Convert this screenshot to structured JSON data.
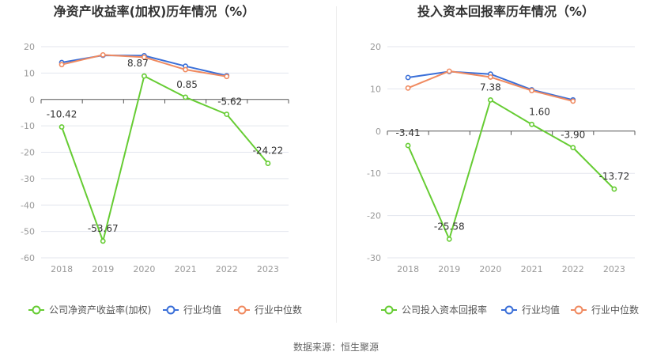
{
  "source_note": "数据来源：恒生聚源",
  "colors": {
    "company": "#66cc33",
    "industry_avg": "#3a6fd8",
    "industry_median": "#f08a60",
    "grid": "#e3e6ee",
    "axis": "#555555",
    "tick_text": "#999999",
    "title_text": "#333333"
  },
  "chart_data": [
    {
      "type": "line",
      "title": "净资产收益率(加权)历年情况（%）",
      "categories": [
        "2018",
        "2019",
        "2020",
        "2021",
        "2022",
        "2023"
      ],
      "y_ticks": [
        "20",
        "10",
        "0",
        "-10",
        "-20",
        "-30",
        "-40",
        "-50",
        "-60"
      ],
      "ylim": [
        -60,
        20
      ],
      "xlabel": "",
      "ylabel": "",
      "grid": true,
      "legend_position": "bottom-left",
      "series": [
        {
          "name": "公司净资产收益率(加权)",
          "color_key": "company",
          "values": [
            -10.42,
            -53.67,
            8.87,
            0.85,
            -5.62,
            -24.22
          ],
          "labels": [
            "-10.42",
            "-53.67",
            "8.87",
            "0.85",
            "-5.62",
            "-24.22"
          ]
        },
        {
          "name": "行业均值",
          "color_key": "industry_avg",
          "values": [
            14.0,
            16.7,
            16.6,
            12.6,
            9.0,
            null
          ]
        },
        {
          "name": "行业中位数",
          "color_key": "industry_median",
          "values": [
            13.2,
            16.9,
            16.0,
            11.3,
            8.7,
            null
          ]
        }
      ]
    },
    {
      "type": "line",
      "title": "投入资本回报率历年情况（%）",
      "categories": [
        "2018",
        "2019",
        "2020",
        "2021",
        "2022",
        "2023"
      ],
      "y_ticks": [
        "20",
        "10",
        "0",
        "-10",
        "-20",
        "-30"
      ],
      "ylim": [
        -30,
        20
      ],
      "xlabel": "",
      "ylabel": "",
      "grid": true,
      "legend_position": "bottom-left",
      "series": [
        {
          "name": "公司投入资本回报率",
          "color_key": "company",
          "values": [
            -3.41,
            -25.58,
            7.38,
            1.6,
            -3.9,
            -13.72
          ],
          "labels": [
            "-3.41",
            "-25.58",
            "7.38",
            "1.60",
            "-3.90",
            "-13.72"
          ]
        },
        {
          "name": "行业均值",
          "color_key": "industry_avg",
          "values": [
            12.7,
            14.1,
            13.5,
            9.8,
            7.4,
            null
          ]
        },
        {
          "name": "行业中位数",
          "color_key": "industry_median",
          "values": [
            10.2,
            14.2,
            12.8,
            9.6,
            7.1,
            null
          ]
        }
      ]
    }
  ]
}
